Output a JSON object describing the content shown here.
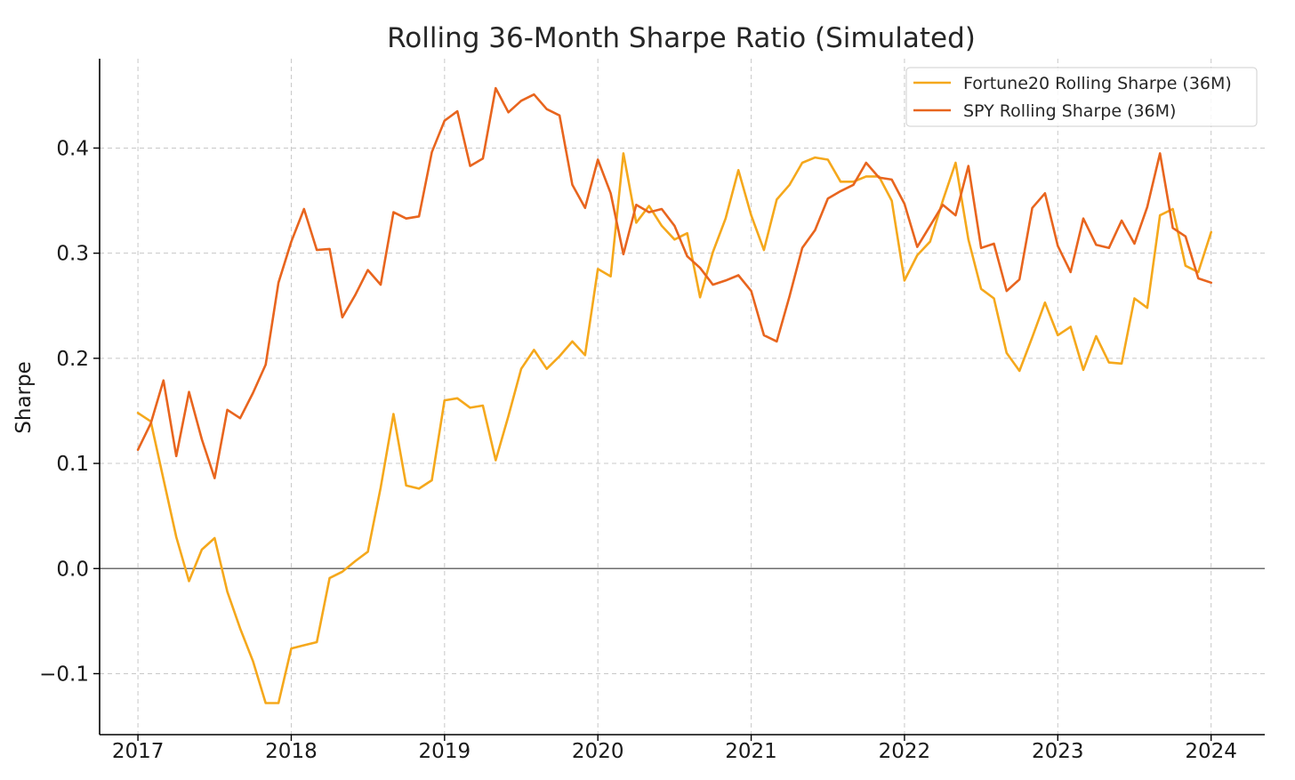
{
  "chart_data": {
    "type": "line",
    "title": "Rolling 36-Month Sharpe Ratio (Simulated)",
    "xlabel": "",
    "ylabel": "Sharpe",
    "x_start": 2017,
    "x_step_months": 1,
    "xlim": [
      2016.75,
      2024.35
    ],
    "ylim": [
      -0.158,
      0.485
    ],
    "x_ticks": [
      {
        "value": 2017,
        "label": "2017"
      },
      {
        "value": 2018,
        "label": "2018"
      },
      {
        "value": 2019,
        "label": "2019"
      },
      {
        "value": 2020,
        "label": "2020"
      },
      {
        "value": 2021,
        "label": "2021"
      },
      {
        "value": 2022,
        "label": "2022"
      },
      {
        "value": 2023,
        "label": "2023"
      },
      {
        "value": 2024,
        "label": "2024"
      }
    ],
    "y_ticks": [
      {
        "value": -0.1,
        "label": "−0.1"
      },
      {
        "value": 0.0,
        "label": "0.0"
      },
      {
        "value": 0.1,
        "label": "0.1"
      },
      {
        "value": 0.2,
        "label": "0.2"
      },
      {
        "value": 0.3,
        "label": "0.3"
      },
      {
        "value": 0.4,
        "label": "0.4"
      }
    ],
    "grid": true,
    "zero_line": true,
    "legend_position": "top-right",
    "series": [
      {
        "name": "Fortune20 Rolling Sharpe (36M)",
        "color": "#F5A81C",
        "values": [
          0.148,
          0.14,
          0.085,
          0.03,
          -0.012,
          0.018,
          0.029,
          -0.022,
          -0.057,
          -0.088,
          -0.128,
          -0.128,
          -0.076,
          -0.073,
          -0.07,
          -0.009,
          -0.003,
          0.007,
          0.016,
          0.077,
          0.147,
          0.079,
          0.076,
          0.084,
          0.16,
          0.162,
          0.153,
          0.155,
          0.103,
          0.145,
          0.19,
          0.208,
          0.19,
          0.202,
          0.216,
          0.203,
          0.285,
          0.278,
          0.395,
          0.329,
          0.345,
          0.326,
          0.313,
          0.319,
          0.258,
          0.301,
          0.333,
          0.379,
          0.336,
          0.303,
          0.351,
          0.365,
          0.386,
          0.391,
          0.389,
          0.368,
          0.368,
          0.373,
          0.373,
          0.35,
          0.274,
          0.298,
          0.311,
          0.35,
          0.386,
          0.313,
          0.266,
          0.257,
          0.205,
          0.188,
          0.22,
          0.253,
          0.222,
          0.23,
          0.189,
          0.221,
          0.196,
          0.195,
          0.257,
          0.248,
          0.336,
          0.342,
          0.288,
          0.282,
          0.32
        ]
      },
      {
        "name": "SPY Rolling Sharpe (36M)",
        "color": "#E8651E",
        "values": [
          0.113,
          0.138,
          0.179,
          0.107,
          0.168,
          0.123,
          0.086,
          0.151,
          0.143,
          0.167,
          0.194,
          0.272,
          0.311,
          0.342,
          0.303,
          0.304,
          0.239,
          0.26,
          0.284,
          0.27,
          0.339,
          0.333,
          0.335,
          0.396,
          0.426,
          0.435,
          0.383,
          0.39,
          0.457,
          0.434,
          0.445,
          0.451,
          0.437,
          0.431,
          0.365,
          0.343,
          0.389,
          0.357,
          0.299,
          0.346,
          0.339,
          0.342,
          0.326,
          0.297,
          0.286,
          0.27,
          0.274,
          0.279,
          0.264,
          0.222,
          0.216,
          0.259,
          0.305,
          0.322,
          0.352,
          0.359,
          0.365,
          0.386,
          0.372,
          0.37,
          0.347,
          0.306,
          0.326,
          0.346,
          0.336,
          0.383,
          0.305,
          0.309,
          0.264,
          0.275,
          0.343,
          0.357,
          0.307,
          0.282,
          0.333,
          0.308,
          0.305,
          0.331,
          0.309,
          0.344,
          0.395,
          0.324,
          0.316,
          0.276,
          0.272
        ]
      }
    ]
  }
}
